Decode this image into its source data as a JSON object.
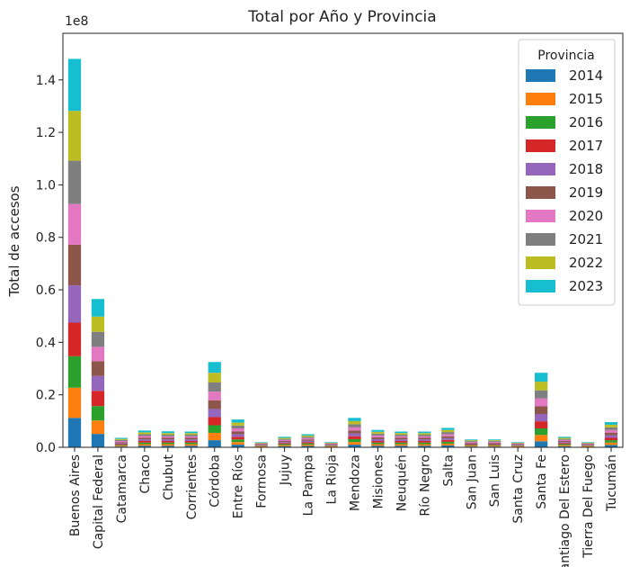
{
  "chart_data": {
    "type": "bar",
    "stacked": true,
    "title": "Total por Año y Provincia",
    "xlabel": "",
    "ylabel": "Total de accesos",
    "y_offset_label": "1e8",
    "ylim": [
      0,
      1.55
    ],
    "y_ticks": [
      0.0,
      0.2,
      0.4,
      0.6,
      0.8,
      1.0,
      1.2,
      1.4
    ],
    "y_tick_labels": [
      "0.0",
      "0.2",
      "0.4",
      "0.6",
      "0.8",
      "1.0",
      "1.2",
      "1.4"
    ],
    "grid": false,
    "legend": {
      "title": "Provincia",
      "placement": "top-right"
    },
    "categories": [
      "Buenos Aires",
      "Capital Federal",
      "Catamarca",
      "Chaco",
      "Chubut",
      "Corrientes",
      "Córdoba",
      "Entre Ríos",
      "Formosa",
      "Jujuy",
      "La Pampa",
      "La Rioja",
      "Mendoza",
      "Misiones",
      "Neuquén",
      "Río Negro",
      "Salta",
      "San Juan",
      "San Luis",
      "Santa Cruz",
      "Santa Fe",
      "Santiago Del Estero",
      "Tierra Del Fuego",
      "Tucumán"
    ],
    "series": [
      {
        "name": "2014",
        "color": "#1f77b4",
        "values": [
          0.112,
          0.051,
          0.003,
          0.006,
          0.006,
          0.006,
          0.027,
          0.01,
          0.002,
          0.004,
          0.005,
          0.002,
          0.01,
          0.006,
          0.006,
          0.006,
          0.007,
          0.003,
          0.003,
          0.002,
          0.023,
          0.004,
          0.002,
          0.009
        ]
      },
      {
        "name": "2015",
        "color": "#ff7f0e",
        "values": [
          0.115,
          0.051,
          0.003,
          0.006,
          0.006,
          0.006,
          0.028,
          0.01,
          0.002,
          0.004,
          0.005,
          0.002,
          0.01,
          0.006,
          0.006,
          0.006,
          0.007,
          0.003,
          0.003,
          0.002,
          0.024,
          0.004,
          0.002,
          0.009
        ]
      },
      {
        "name": "2016",
        "color": "#2ca02c",
        "values": [
          0.12,
          0.055,
          0.003,
          0.006,
          0.006,
          0.006,
          0.029,
          0.01,
          0.002,
          0.004,
          0.005,
          0.002,
          0.011,
          0.006,
          0.006,
          0.006,
          0.007,
          0.003,
          0.003,
          0.002,
          0.025,
          0.004,
          0.002,
          0.009
        ]
      },
      {
        "name": "2017",
        "color": "#d62728",
        "values": [
          0.128,
          0.058,
          0.003,
          0.006,
          0.006,
          0.006,
          0.031,
          0.01,
          0.002,
          0.004,
          0.005,
          0.002,
          0.011,
          0.006,
          0.006,
          0.006,
          0.007,
          0.003,
          0.003,
          0.002,
          0.027,
          0.004,
          0.002,
          0.009
        ]
      },
      {
        "name": "2018",
        "color": "#9467bd",
        "values": [
          0.142,
          0.057,
          0.004,
          0.006,
          0.006,
          0.006,
          0.031,
          0.01,
          0.002,
          0.004,
          0.005,
          0.002,
          0.011,
          0.007,
          0.006,
          0.006,
          0.007,
          0.003,
          0.003,
          0.002,
          0.028,
          0.004,
          0.002,
          0.01
        ]
      },
      {
        "name": "2019",
        "color": "#8c564b",
        "values": [
          0.155,
          0.056,
          0.004,
          0.006,
          0.006,
          0.006,
          0.033,
          0.011,
          0.002,
          0.004,
          0.005,
          0.002,
          0.011,
          0.007,
          0.006,
          0.006,
          0.007,
          0.003,
          0.003,
          0.002,
          0.029,
          0.004,
          0.002,
          0.01
        ]
      },
      {
        "name": "2020",
        "color": "#e377c2",
        "values": [
          0.155,
          0.055,
          0.004,
          0.007,
          0.006,
          0.006,
          0.033,
          0.011,
          0.002,
          0.004,
          0.005,
          0.002,
          0.012,
          0.007,
          0.006,
          0.006,
          0.008,
          0.003,
          0.003,
          0.002,
          0.03,
          0.004,
          0.002,
          0.01
        ]
      },
      {
        "name": "2021",
        "color": "#7f7f7f",
        "values": [
          0.165,
          0.057,
          0.004,
          0.007,
          0.006,
          0.006,
          0.035,
          0.011,
          0.002,
          0.004,
          0.005,
          0.002,
          0.012,
          0.007,
          0.006,
          0.006,
          0.008,
          0.003,
          0.003,
          0.002,
          0.031,
          0.004,
          0.002,
          0.01
        ]
      },
      {
        "name": "2022",
        "color": "#bcbd22",
        "values": [
          0.19,
          0.058,
          0.004,
          0.007,
          0.006,
          0.006,
          0.037,
          0.011,
          0.002,
          0.004,
          0.005,
          0.002,
          0.012,
          0.007,
          0.006,
          0.006,
          0.008,
          0.003,
          0.003,
          0.002,
          0.033,
          0.004,
          0.002,
          0.01
        ]
      },
      {
        "name": "2023",
        "color": "#17becf",
        "values": [
          0.198,
          0.067,
          0.004,
          0.007,
          0.007,
          0.006,
          0.041,
          0.012,
          0.002,
          0.004,
          0.005,
          0.002,
          0.012,
          0.007,
          0.006,
          0.006,
          0.008,
          0.003,
          0.003,
          0.002,
          0.034,
          0.004,
          0.002,
          0.01
        ]
      }
    ]
  }
}
